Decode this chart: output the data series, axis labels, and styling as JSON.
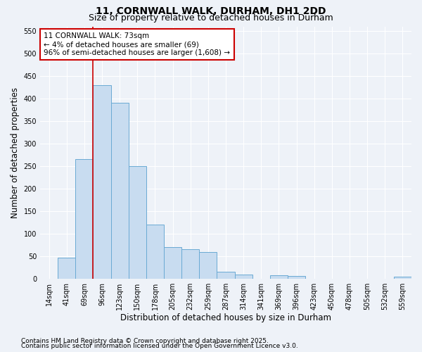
{
  "title1": "11, CORNWALL WALK, DURHAM, DH1 2DD",
  "title2": "Size of property relative to detached houses in Durham",
  "xlabel": "Distribution of detached houses by size in Durham",
  "ylabel": "Number of detached properties",
  "footnote1": "Contains HM Land Registry data © Crown copyright and database right 2025.",
  "footnote2": "Contains public sector information licensed under the Open Government Licence v3.0.",
  "annotation_line1": "11 CORNWALL WALK: 73sqm",
  "annotation_line2": "← 4% of detached houses are smaller (69)",
  "annotation_line3": "96% of semi-detached houses are larger (1,608) →",
  "bar_labels": [
    "14sqm",
    "41sqm",
    "69sqm",
    "96sqm",
    "123sqm",
    "150sqm",
    "178sqm",
    "205sqm",
    "232sqm",
    "259sqm",
    "287sqm",
    "314sqm",
    "341sqm",
    "369sqm",
    "396sqm",
    "423sqm",
    "450sqm",
    "478sqm",
    "505sqm",
    "532sqm",
    "559sqm"
  ],
  "bar_values": [
    0,
    47,
    265,
    430,
    390,
    250,
    120,
    70,
    65,
    60,
    15,
    10,
    0,
    8,
    7,
    0,
    0,
    0,
    0,
    0,
    5
  ],
  "bar_color": "#c8dcf0",
  "bar_edge_color": "#6aaad4",
  "red_line_index": 2.5,
  "ylim": [
    0,
    560
  ],
  "yticks": [
    0,
    50,
    100,
    150,
    200,
    250,
    300,
    350,
    400,
    450,
    500,
    550
  ],
  "bg_color": "#eef2f8",
  "plot_bg_color": "#eef2f8",
  "grid_color": "#ffffff",
  "annotation_box_facecolor": "#ffffff",
  "annotation_box_edgecolor": "#cc0000",
  "title_fontsize": 10,
  "subtitle_fontsize": 9,
  "axis_label_fontsize": 8.5,
  "tick_fontsize": 7,
  "annotation_fontsize": 7.5,
  "footnote_fontsize": 6.5
}
